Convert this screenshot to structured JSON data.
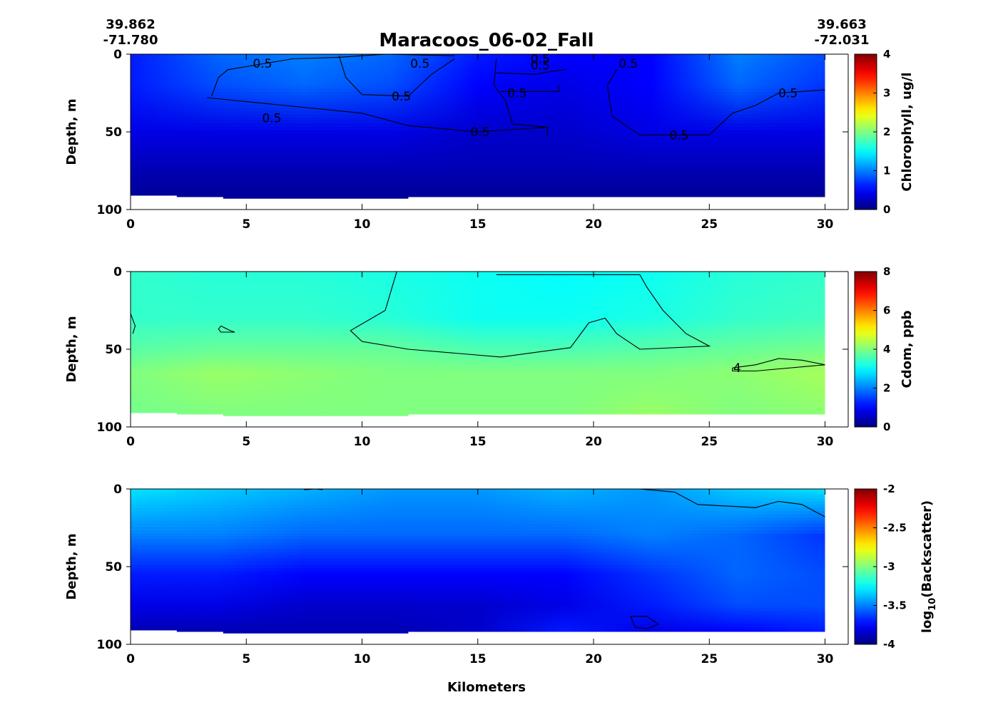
{
  "figure": {
    "title": "Maracoos_06-02_Fall",
    "start_coord": {
      "lat": "39.862",
      "lon": "-71.780"
    },
    "end_coord": {
      "lat": "39.663",
      "lon": "-72.031"
    },
    "xlabel": "Kilometers"
  },
  "chart_data": [
    {
      "type": "heatmap",
      "variable": "chlorophyll",
      "ylabel": "Depth, m",
      "xlabel": "",
      "xlim": [
        0,
        31
      ],
      "ylim": [
        100,
        0
      ],
      "xticks": [
        "0",
        "5",
        "10",
        "15",
        "20",
        "25",
        "30"
      ],
      "yticks": [
        "0",
        "50",
        "100"
      ],
      "colorbar_label": "Chlorophyll, ug/l",
      "colorbar_range": [
        0,
        4
      ],
      "colorbar_ticks": [
        "0",
        "1",
        "2",
        "3",
        "4"
      ],
      "bottom_profile": [
        [
          0,
          90
        ],
        [
          2,
          91
        ],
        [
          4,
          92
        ],
        [
          12,
          93
        ],
        [
          24,
          92
        ],
        [
          30,
          92
        ]
      ],
      "field_levels": [
        {
          "depth": 0,
          "values": [
            0.6,
            0.9,
            1.0,
            0.9,
            0.6,
            0.5,
            0.5,
            1.0,
            0.8
          ]
        },
        {
          "depth": 20,
          "values": [
            0.6,
            0.8,
            0.9,
            0.8,
            0.5,
            0.4,
            0.5,
            0.9,
            0.7
          ]
        },
        {
          "depth": 50,
          "values": [
            0.4,
            0.4,
            0.4,
            0.4,
            0.3,
            0.3,
            0.4,
            0.4,
            0.4
          ]
        },
        {
          "depth": 75,
          "values": [
            0.2,
            0.2,
            0.2,
            0.2,
            0.2,
            0.2,
            0.2,
            0.2,
            0.2
          ]
        },
        {
          "depth": 92,
          "values": [
            0.1,
            0.1,
            0.1,
            0.1,
            0.1,
            0.1,
            0.1,
            0.1,
            0.1
          ]
        }
      ],
      "contours": [
        {
          "level": "0.5",
          "points": [
            [
              3.5,
              27
            ],
            [
              3.8,
              15
            ],
            [
              4.2,
              10
            ],
            [
              7,
              3
            ],
            [
              9,
              2
            ],
            [
              11,
              0
            ],
            [
              14,
              1
            ]
          ]
        },
        {
          "level": "0.5",
          "points": [
            [
              3.3,
              28
            ],
            [
              6,
              32
            ],
            [
              10,
              38
            ],
            [
              11,
              42
            ],
            [
              12,
              46
            ],
            [
              15,
              50
            ],
            [
              18,
              47
            ]
          ]
        },
        {
          "level": "0.5",
          "points": [
            [
              9,
              1
            ],
            [
              9.3,
              15
            ],
            [
              10,
              26
            ],
            [
              12,
              27
            ],
            [
              12.5,
              20
            ],
            [
              13,
              13
            ],
            [
              14,
              3
            ]
          ]
        },
        {
          "level": "0.5",
          "points": [
            [
              15.8,
              3
            ],
            [
              15.7,
              20
            ],
            [
              16.2,
              30
            ],
            [
              16.5,
              45
            ],
            [
              18,
              47
            ],
            [
              18,
              53
            ]
          ]
        },
        {
          "level": "0.5",
          "points": [
            [
              15.8,
              12
            ],
            [
              17.5,
              13
            ],
            [
              18.2,
              11
            ],
            [
              18.8,
              10
            ]
          ]
        },
        {
          "level": "0.5",
          "points": [
            [
              16,
              24
            ],
            [
              18.5,
              24
            ],
            [
              18.5,
              20
            ]
          ]
        },
        {
          "level": "0.5",
          "points": [
            [
              21,
              10
            ],
            [
              20.6,
              20
            ],
            [
              20.8,
              40
            ],
            [
              22,
              52
            ],
            [
              25,
              52
            ],
            [
              26,
              38
            ],
            [
              27,
              33
            ],
            [
              28,
              25
            ],
            [
              30,
              23
            ]
          ]
        }
      ],
      "contour_labels": [
        {
          "text": "0.5",
          "x": 5.7,
          "y": 6
        },
        {
          "text": "0.5",
          "x": 12.5,
          "y": 6
        },
        {
          "text": "0.5",
          "x": 17.7,
          "y": 3
        },
        {
          "text": "0.5",
          "x": 17.7,
          "y": 7
        },
        {
          "text": "0.5",
          "x": 21.5,
          "y": 6
        },
        {
          "text": "0.5",
          "x": 11.7,
          "y": 27
        },
        {
          "text": "0.5",
          "x": 6.1,
          "y": 41
        },
        {
          "text": "0.5",
          "x": 16.7,
          "y": 25
        },
        {
          "text": "0.5",
          "x": 15.1,
          "y": 50
        },
        {
          "text": "0.5",
          "x": 23.7,
          "y": 52
        },
        {
          "text": "0.5",
          "x": 28.4,
          "y": 25
        }
      ]
    },
    {
      "type": "heatmap",
      "variable": "cdom",
      "ylabel": "Depth, m",
      "xlabel": "",
      "xlim": [
        0,
        31
      ],
      "ylim": [
        100,
        0
      ],
      "xticks": [
        "0",
        "5",
        "10",
        "15",
        "20",
        "25",
        "30"
      ],
      "yticks": [
        "0",
        "50",
        "100"
      ],
      "colorbar_label": "Cdom, ppb",
      "colorbar_range": [
        0,
        8
      ],
      "colorbar_ticks": [
        "0",
        "2",
        "4",
        "6",
        "8"
      ],
      "bottom_profile": [
        [
          0,
          90
        ],
        [
          2,
          91
        ],
        [
          4,
          92
        ],
        [
          12,
          93
        ],
        [
          24,
          92
        ],
        [
          30,
          92
        ]
      ],
      "field_levels": [
        {
          "depth": 0,
          "values": [
            3.4,
            3.3,
            3.3,
            3.2,
            3.1,
            3.0,
            3.1,
            3.3,
            3.4
          ]
        },
        {
          "depth": 30,
          "values": [
            3.4,
            3.4,
            3.4,
            3.3,
            3.1,
            3.1,
            3.2,
            3.4,
            3.5
          ]
        },
        {
          "depth": 50,
          "values": [
            3.7,
            3.8,
            3.8,
            3.8,
            3.6,
            3.6,
            3.7,
            3.8,
            3.9
          ]
        },
        {
          "depth": 65,
          "values": [
            4.0,
            4.2,
            4.1,
            4.0,
            4.0,
            4.0,
            4.0,
            4.1,
            4.3
          ]
        },
        {
          "depth": 92,
          "values": [
            3.9,
            4.0,
            4.0,
            4.0,
            4.0,
            4.0,
            4.2,
            4.0,
            4.1
          ]
        }
      ],
      "contours": [
        {
          "level": "",
          "points": [
            [
              11.5,
              0
            ],
            [
              11.3,
              10
            ],
            [
              11,
              25
            ],
            [
              9.5,
              38
            ],
            [
              10,
              45
            ],
            [
              12,
              50
            ],
            [
              16,
              55
            ],
            [
              19,
              49
            ],
            [
              19.8,
              33
            ],
            [
              20.5,
              30
            ],
            [
              21,
              40
            ],
            [
              22,
              50
            ],
            [
              25,
              48
            ],
            [
              24,
              40
            ],
            [
              23,
              25
            ],
            [
              22.3,
              10
            ],
            [
              22,
              2
            ],
            [
              15.8,
              2
            ]
          ]
        },
        {
          "level": "",
          "points": [
            [
              0,
              27
            ],
            [
              0.2,
              35
            ],
            [
              0.1,
              40
            ]
          ]
        },
        {
          "level": "",
          "points": [
            [
              3.9,
              35
            ],
            [
              4.3,
              38
            ],
            [
              4.5,
              39
            ],
            [
              3.9,
              39
            ],
            [
              3.8,
              37
            ],
            [
              3.9,
              35
            ]
          ]
        },
        {
          "level": "4",
          "points": [
            [
              26,
              62
            ],
            [
              27,
              60
            ],
            [
              28,
              56
            ],
            [
              29,
              57
            ],
            [
              30,
              60
            ],
            [
              27,
              64
            ],
            [
              26,
              64
            ],
            [
              26,
              62
            ]
          ]
        }
      ],
      "contour_labels": [
        {
          "text": "4",
          "x": 26.2,
          "y": 62
        }
      ]
    },
    {
      "type": "heatmap",
      "variable": "backscatter",
      "ylabel": "Depth, m",
      "xlabel": "Kilometers",
      "xlim": [
        0,
        31
      ],
      "ylim": [
        100,
        0
      ],
      "xticks": [
        "0",
        "5",
        "10",
        "15",
        "20",
        "25",
        "30"
      ],
      "yticks": [
        "0",
        "50",
        "100"
      ],
      "colorbar_label": "log10(Backscatter)",
      "colorbar_range": [
        -4,
        -2
      ],
      "colorbar_ticks": [
        "-4",
        "-3.5",
        "-3",
        "-2.5",
        "-2"
      ],
      "bottom_profile": [
        [
          0,
          90
        ],
        [
          2,
          91
        ],
        [
          4,
          92
        ],
        [
          12,
          93
        ],
        [
          24,
          92
        ],
        [
          30,
          92
        ]
      ],
      "field_levels": [
        {
          "depth": 0,
          "values": [
            -3.3,
            -3.35,
            -3.4,
            -3.45,
            -3.45,
            -3.4,
            -3.45,
            -3.35,
            -3.3
          ]
        },
        {
          "depth": 30,
          "values": [
            -3.5,
            -3.5,
            -3.55,
            -3.55,
            -3.55,
            -3.55,
            -3.5,
            -3.55,
            -3.65
          ]
        },
        {
          "depth": 55,
          "values": [
            -3.7,
            -3.7,
            -3.75,
            -3.75,
            -3.75,
            -3.75,
            -3.65,
            -3.55,
            -3.6
          ]
        },
        {
          "depth": 75,
          "values": [
            -3.8,
            -3.8,
            -3.85,
            -3.85,
            -3.85,
            -3.8,
            -3.7,
            -3.6,
            -3.6
          ]
        },
        {
          "depth": 92,
          "values": [
            -3.9,
            -3.9,
            -3.9,
            -3.9,
            -3.85,
            -3.7,
            -3.8,
            -3.75,
            -3.7
          ]
        }
      ],
      "contours": [
        {
          "level": "",
          "points": [
            [
              7.5,
              0.5
            ],
            [
              8,
              0
            ],
            [
              8.3,
              0.5
            ]
          ]
        },
        {
          "level": "",
          "points": [
            [
              13.8,
              0
            ],
            [
              16,
              0
            ],
            [
              17,
              0
            ]
          ]
        },
        {
          "level": "",
          "points": [
            [
              22,
              0
            ],
            [
              23.5,
              2
            ],
            [
              24.5,
              10
            ],
            [
              27,
              12
            ],
            [
              28,
              8
            ],
            [
              29,
              10
            ],
            [
              30,
              18
            ]
          ]
        },
        {
          "level": "",
          "points": [
            [
              21.6,
              82
            ],
            [
              22.3,
              82
            ],
            [
              22.8,
              87
            ],
            [
              22.3,
              90
            ],
            [
              21.8,
              89
            ],
            [
              21.6,
              82
            ]
          ]
        }
      ],
      "contour_labels": []
    }
  ]
}
